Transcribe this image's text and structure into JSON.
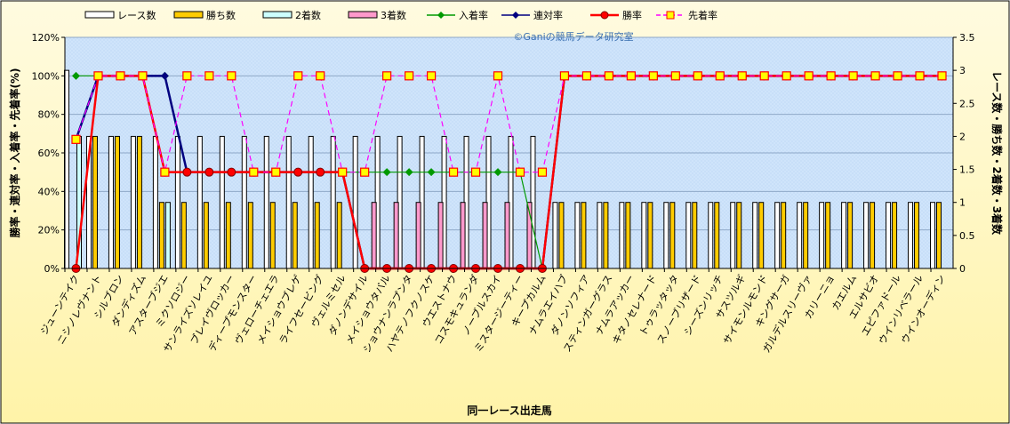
{
  "chart_data": {
    "type": "bar",
    "watermark": "©Ganiの競馬データ研究室",
    "xlabel": "同一レース出走馬",
    "ylabel_left": "勝率・連対率・入着率・先着率(%)",
    "ylabel_right": "レース数・勝ち数・2着数・3着数",
    "ylim_left": [
      0,
      120
    ],
    "ylim_right": [
      0,
      3.5
    ],
    "yticks_left": [
      "0%",
      "20%",
      "40%",
      "60%",
      "80%",
      "100%",
      "120%"
    ],
    "yticks_right": [
      "0",
      "0.5",
      "1",
      "1.5",
      "2",
      "2.5",
      "3",
      "3.5"
    ],
    "categories": [
      "ジューンテイク",
      "ニシノレヴナント",
      "シルブロン",
      "ダンディズム",
      "アスターブジエ",
      "ミクソロジー",
      "サンライズソレイユ",
      "ブレイヴロッカー",
      "ディープモンスター",
      "ヴェローチェエラ",
      "メイショウブレゲ",
      "ライフセービング",
      "ヴェルミセル",
      "ダノンデサイル",
      "メイショウタバル",
      "ショウナンラプンタ",
      "ハヤテノフクノスケ",
      "ウエストナウ",
      "コスモキュランダ",
      "ノーブルスカイ",
      "ミスタージーティー",
      "キープカルム",
      "ナムラエイハブ",
      "ダノンソフィア",
      "スティンガーグラス",
      "ナムラアッカー",
      "キタノセレナード",
      "トゥラッタッタ",
      "スノーブリザード",
      "シーズンリッチ",
      "サスツルギ",
      "サイモンルモンド",
      "キングサーガ",
      "ガルデルスリーヴァ",
      "カリーニョ",
      "カエルム",
      "エルサビオ",
      "エピファドール",
      "ウインリベラール",
      "ウインオーディン"
    ],
    "series": [
      {
        "name": "レース数",
        "kind": "bar",
        "axis": "right",
        "color": "#ffffff",
        "values": [
          3,
          2,
          2,
          2,
          2,
          2,
          2,
          2,
          2,
          2,
          2,
          2,
          2,
          2,
          2,
          2,
          2,
          2,
          2,
          2,
          2,
          2,
          1,
          1,
          1,
          1,
          1,
          1,
          1,
          1,
          1,
          1,
          1,
          1,
          1,
          1,
          1,
          1,
          1,
          1
        ]
      },
      {
        "name": "勝ち数",
        "kind": "bar",
        "axis": "right",
        "color": "#ffcc00",
        "values": [
          0,
          2,
          2,
          2,
          1,
          1,
          1,
          1,
          1,
          1,
          1,
          1,
          1,
          0,
          0,
          0,
          0,
          0,
          0,
          0,
          0,
          0,
          1,
          1,
          1,
          1,
          1,
          1,
          1,
          1,
          1,
          1,
          1,
          1,
          1,
          1,
          1,
          1,
          1,
          1
        ]
      },
      {
        "name": "2着数",
        "kind": "bar",
        "axis": "right",
        "color": "#ccffff",
        "values": [
          2,
          0,
          0,
          0,
          1,
          0,
          0,
          0,
          0,
          0,
          0,
          0,
          0,
          0,
          0,
          0,
          0,
          0,
          0,
          0,
          0,
          0,
          0,
          0,
          0,
          0,
          0,
          0,
          0,
          0,
          0,
          0,
          0,
          0,
          0,
          0,
          0,
          0,
          0,
          0
        ]
      },
      {
        "name": "3着数",
        "kind": "bar",
        "axis": "right",
        "color": "#ff99cc",
        "values": [
          0,
          0,
          0,
          0,
          0,
          0,
          0,
          0,
          0,
          0,
          0,
          0,
          0,
          1,
          1,
          1,
          1,
          1,
          1,
          1,
          1,
          0,
          0,
          0,
          0,
          0,
          0,
          0,
          0,
          0,
          0,
          0,
          0,
          0,
          0,
          0,
          0,
          0,
          0,
          0
        ]
      },
      {
        "name": "入着率",
        "kind": "line",
        "axis": "left",
        "color": "#009900",
        "marker": "diamond",
        "values": [
          100,
          100,
          100,
          100,
          100,
          50,
          50,
          50,
          50,
          50,
          50,
          50,
          50,
          50,
          50,
          50,
          50,
          50,
          50,
          50,
          50,
          0,
          null,
          null,
          null,
          null,
          null,
          null,
          null,
          null,
          null,
          null,
          null,
          null,
          null,
          null,
          null,
          null,
          null,
          null
        ]
      },
      {
        "name": "連対率",
        "kind": "line",
        "axis": "left",
        "color": "#000080",
        "marker": "diamond",
        "values": [
          67,
          100,
          100,
          100,
          100,
          50,
          50,
          50,
          50,
          50,
          50,
          50,
          50,
          0,
          0,
          0,
          0,
          0,
          0,
          0,
          0,
          0,
          100,
          100,
          100,
          100,
          100,
          100,
          100,
          100,
          100,
          100,
          100,
          100,
          100,
          100,
          100,
          100,
          100,
          100
        ]
      },
      {
        "name": "勝率",
        "kind": "line",
        "axis": "left",
        "color": "#ff0000",
        "marker": "circle",
        "values": [
          0,
          100,
          100,
          100,
          50,
          50,
          50,
          50,
          50,
          50,
          50,
          50,
          50,
          0,
          0,
          0,
          0,
          0,
          0,
          0,
          0,
          0,
          100,
          100,
          100,
          100,
          100,
          100,
          100,
          100,
          100,
          100,
          100,
          100,
          100,
          100,
          100,
          100,
          100,
          100
        ]
      },
      {
        "name": "先着率",
        "kind": "line",
        "axis": "left",
        "color": "#ff00ff",
        "dashed": true,
        "marker": "square",
        "values": [
          67,
          100,
          100,
          100,
          50,
          100,
          100,
          100,
          50,
          50,
          100,
          100,
          50,
          50,
          100,
          100,
          100,
          50,
          50,
          100,
          50,
          50,
          100,
          100,
          100,
          100,
          100,
          100,
          100,
          100,
          100,
          100,
          100,
          100,
          100,
          100,
          100,
          100,
          100,
          100
        ]
      }
    ]
  }
}
